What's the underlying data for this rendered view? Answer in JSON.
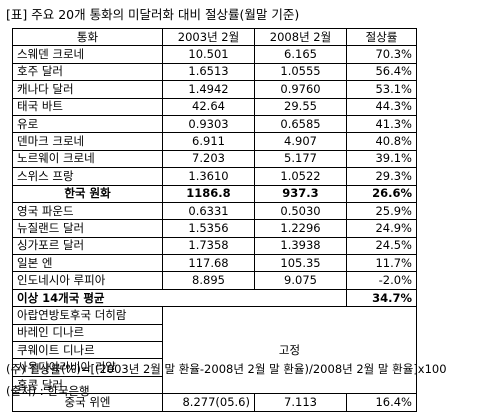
{
  "title": "[표] 주요 20개 통화의 미달러화 대비 절상률(월말 기준)",
  "table": {
    "headers": [
      "통화",
      "2003년 2월",
      "2008년 2월",
      "절상률"
    ],
    "rows": [
      {
        "currency": "스웨덴 크로네",
        "y2003": "10.501",
        "y2008": "6.165",
        "rate": "70.3%"
      },
      {
        "currency": "호주 달러",
        "y2003": "1.6513",
        "y2008": "1.0555",
        "rate": "56.4%"
      },
      {
        "currency": "캐나다 달러",
        "y2003": "1.4942",
        "y2008": "0.9760",
        "rate": "53.1%"
      },
      {
        "currency": "태국 바트",
        "y2003": "42.64",
        "y2008": "29.55",
        "rate": "44.3%"
      },
      {
        "currency": "유로",
        "y2003": "0.9303",
        "y2008": "0.6585",
        "rate": "41.3%"
      },
      {
        "currency": "덴마크 크로네",
        "y2003": "6.911",
        "y2008": "4.907",
        "rate": "40.8%"
      },
      {
        "currency": "노르웨이 크로네",
        "y2003": "7.203",
        "y2008": "5.177",
        "rate": "39.1%"
      },
      {
        "currency": "스위스 프랑",
        "y2003": "1.3610",
        "y2008": "1.0522",
        "rate": "29.3%"
      },
      {
        "currency": "한국 원화",
        "y2003": "1186.8",
        "y2008": "937.3",
        "rate": "26.6%"
      },
      {
        "currency": "영국 파운드",
        "y2003": "0.6331",
        "y2008": "0.5030",
        "rate": "25.9%"
      },
      {
        "currency": "뉴질랜드 달러",
        "y2003": "1.5356",
        "y2008": "1.2296",
        "rate": "24.9%"
      },
      {
        "currency": "싱가포르 달러",
        "y2003": "1.7358",
        "y2008": "1.3938",
        "rate": "24.5%"
      },
      {
        "currency": "일본 엔",
        "y2003": "117.68",
        "y2008": "105.35",
        "rate": "11.7%"
      },
      {
        "currency": "인도네시아 루피아",
        "y2003": "8.895",
        "y2008": "9.075",
        "rate": "-2.0%"
      }
    ],
    "average": {
      "label": "이상 14개국 평균",
      "rate": "34.7%"
    },
    "fixed_currencies": [
      "아랍연방토후국 더히람",
      "바레인 디나르",
      "쿠웨이트 디나르",
      "사우디아라비아 리얄",
      "홍콩 달러"
    ],
    "fixed_label": "고정",
    "china": {
      "currency": "중국 위엔",
      "y2003": "8.277(05.6)",
      "y2008": "7.113",
      "rate": "16.4%"
    }
  },
  "note": "(주) 절상률(%)=[(2003년 2월 말 환율-2008년 2월 말 환율)/2008년 2월 말 환율]x100",
  "source": "(출처) : 한국은행"
}
